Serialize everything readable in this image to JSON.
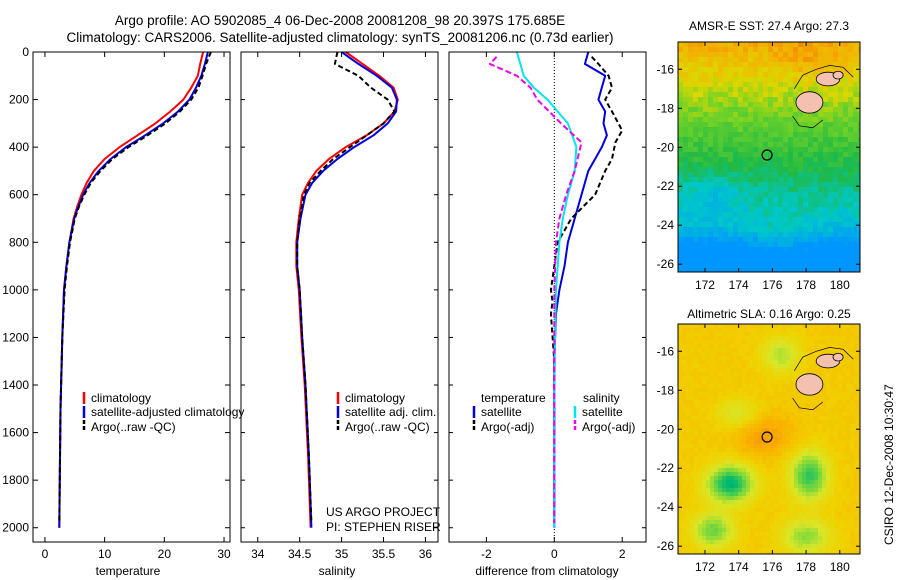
{
  "header": {
    "title_line1": "Argo profile: AO 5902085_4 06-Dec-2008 20081208_98 20.397S 175.685E",
    "title_line2": "Climatology: CARS2006. Satellite-adjusted climatology: synTS_20081206.nc (0.73d earlier)"
  },
  "colors": {
    "climatology": "#ff0000",
    "satellite": "#0000dd",
    "argo": "#000000",
    "cyan": "#00e5ee",
    "magenta": "#ee00ee"
  },
  "side_label": "CSIRO 12-Dec-2008 10:30:47",
  "chart_data": [
    {
      "id": "temperature",
      "type": "line",
      "xlabel": "temperature",
      "ylabel": "",
      "xlim": [
        -2,
        31
      ],
      "ylim": [
        2060,
        0
      ],
      "xticks": [
        0,
        10,
        20,
        30
      ],
      "yticks": [
        0,
        200,
        400,
        600,
        800,
        1000,
        1200,
        1400,
        1600,
        1800,
        2000
      ],
      "series": [
        {
          "name": "climatology",
          "color": "#ff0000",
          "dash": "",
          "x": [
            26.5,
            26.0,
            25.6,
            24.5,
            23.2,
            21.0,
            18.5,
            15.5,
            12.5,
            10.0,
            8.2,
            7.0,
            6.1,
            5.4,
            4.8,
            4.1,
            3.6,
            3.2,
            2.9,
            2.6,
            2.4
          ],
          "y": [
            0,
            50,
            100,
            150,
            200,
            250,
            300,
            350,
            400,
            450,
            500,
            550,
            600,
            650,
            700,
            800,
            900,
            1000,
            1200,
            1500,
            2000
          ]
        },
        {
          "name": "satellite-adjusted climatology",
          "color": "#0000dd",
          "dash": "",
          "x": [
            27.3,
            26.8,
            26.2,
            25.3,
            24.2,
            22.3,
            19.8,
            16.8,
            13.6,
            11.0,
            9.0,
            7.5,
            6.4,
            5.6,
            4.9,
            4.1,
            3.6,
            3.2,
            2.9,
            2.6,
            2.4
          ],
          "y": [
            0,
            50,
            100,
            150,
            200,
            250,
            300,
            350,
            400,
            450,
            500,
            550,
            600,
            650,
            700,
            800,
            900,
            1000,
            1200,
            1500,
            2000
          ]
        },
        {
          "name": "Argo(..raw -QC)",
          "color": "#000000",
          "dash": "5,3",
          "x": [
            27.8,
            27.0,
            26.4,
            25.7,
            24.5,
            22.6,
            20.2,
            17.2,
            14.0,
            11.3,
            9.3,
            7.7,
            6.6,
            5.7,
            5.0,
            4.2,
            3.7,
            3.3,
            2.9,
            2.6,
            2.4
          ],
          "y": [
            0,
            50,
            100,
            150,
            200,
            250,
            300,
            350,
            400,
            450,
            500,
            550,
            600,
            650,
            700,
            800,
            900,
            1000,
            1200,
            1500,
            1980
          ]
        }
      ],
      "legend": [
        "climatology",
        "satellite-adjusted climatology",
        "Argo(..raw -QC)"
      ]
    },
    {
      "id": "salinity",
      "type": "line",
      "xlabel": "salinity",
      "xlim": [
        33.8,
        36.15
      ],
      "ylim": [
        2060,
        0
      ],
      "xticks": [
        34,
        34.5,
        35,
        35.5,
        36
      ],
      "xtick_labels": [
        "34",
        "34.5",
        "35",
        "35.5",
        "36"
      ],
      "series": [
        {
          "name": "climatology",
          "color": "#ff0000",
          "dash": "",
          "x": [
            35.05,
            35.25,
            35.45,
            35.62,
            35.67,
            35.63,
            35.5,
            35.3,
            35.05,
            34.85,
            34.7,
            34.6,
            34.53,
            34.49,
            34.46,
            34.46,
            34.49,
            34.52,
            34.56,
            34.6,
            34.63
          ],
          "y": [
            0,
            50,
            100,
            150,
            200,
            250,
            300,
            350,
            400,
            450,
            500,
            550,
            600,
            700,
            800,
            900,
            1000,
            1200,
            1400,
            1700,
            2000
          ]
        },
        {
          "name": "satellite adj. clim.",
          "color": "#0000dd",
          "dash": "",
          "x": [
            35.0,
            35.2,
            35.42,
            35.6,
            35.66,
            35.65,
            35.55,
            35.38,
            35.15,
            34.95,
            34.78,
            34.65,
            34.57,
            34.51,
            34.47,
            34.47,
            34.5,
            34.53,
            34.57,
            34.61,
            34.64
          ],
          "y": [
            0,
            50,
            100,
            150,
            200,
            250,
            300,
            350,
            400,
            450,
            500,
            550,
            600,
            700,
            800,
            900,
            1000,
            1200,
            1400,
            1700,
            2000
          ]
        },
        {
          "name": "Argo(..raw -QC)",
          "color": "#000000",
          "dash": "5,3",
          "x": [
            34.95,
            34.92,
            35.2,
            35.35,
            35.55,
            35.63,
            35.5,
            35.3,
            35.1,
            34.9,
            34.75,
            34.62,
            34.55,
            34.5,
            34.47,
            34.47,
            34.5,
            34.53,
            34.57,
            34.61,
            34.64
          ],
          "y": [
            0,
            50,
            100,
            150,
            200,
            250,
            300,
            350,
            400,
            450,
            500,
            550,
            600,
            700,
            800,
            900,
            1000,
            1200,
            1400,
            1700,
            1980
          ]
        }
      ],
      "legend": [
        "climatology",
        "satellite adj. clim.",
        "Argo(..raw -QC)"
      ],
      "annotation_line1": "US ARGO PROJECT",
      "annotation_line2": "PI: STEPHEN RISER"
    },
    {
      "id": "difference",
      "type": "line",
      "xlabel": "difference from climatology",
      "xlim": [
        -3.1,
        2.7
      ],
      "ylim": [
        2060,
        0
      ],
      "xticks": [
        -2,
        0,
        2
      ],
      "zero_line": true,
      "series": [
        {
          "name": "temperature satellite",
          "color": "#0000dd",
          "dash": "",
          "x": [
            1.0,
            0.9,
            1.5,
            1.4,
            1.3,
            1.5,
            1.45,
            1.55,
            1.4,
            1.2,
            1.0,
            0.8,
            0.6,
            0.4,
            0.3,
            0.15,
            0.05,
            0.0,
            0.0,
            0.0
          ],
          "y": [
            0,
            50,
            100,
            150,
            200,
            250,
            300,
            350,
            400,
            450,
            500,
            600,
            700,
            800,
            900,
            1000,
            1100,
            1300,
            1600,
            2000
          ]
        },
        {
          "name": "temperature Argo(-adj)",
          "color": "#000000",
          "dash": "5,3",
          "x": [
            1.1,
            1.3,
            1.6,
            1.7,
            1.5,
            1.7,
            2.0,
            1.8,
            1.7,
            1.5,
            1.2,
            0.5,
            0.1,
            0.0,
            -0.1,
            -0.05,
            -0.1,
            0.0,
            0.0
          ],
          "y": [
            20,
            50,
            100,
            150,
            200,
            250,
            330,
            380,
            450,
            500,
            600,
            700,
            800,
            900,
            1000,
            1050,
            1100,
            1300,
            1980
          ]
        },
        {
          "name": "salinity satellite",
          "color": "#00e5ee",
          "dash": "",
          "x": [
            -1.1,
            -1.0,
            -0.9,
            -0.6,
            -0.2,
            0.4,
            0.65,
            0.6,
            0.4,
            0.25,
            0.15,
            0.05,
            0.02,
            0.0,
            0.0
          ],
          "y": [
            0,
            50,
            100,
            150,
            200,
            300,
            400,
            500,
            600,
            700,
            800,
            1000,
            1200,
            1500,
            2000
          ]
        },
        {
          "name": "salinity Argo(-adj)",
          "color": "#ee00ee",
          "dash": "6,3",
          "x": [
            -1.7,
            -1.9,
            -1.1,
            -0.7,
            -0.5,
            0.2,
            0.8,
            0.6,
            0.35,
            0.15,
            0.05,
            0.0,
            0.0
          ],
          "y": [
            20,
            50,
            100,
            150,
            200,
            300,
            380,
            500,
            600,
            700,
            800,
            1000,
            1980
          ]
        }
      ],
      "legend_headers": [
        "temperature",
        "salinity"
      ],
      "legend": [
        "satellite",
        "Argo(-adj)",
        "satellite",
        "Argo(-adj)"
      ]
    },
    {
      "id": "sst_map",
      "type": "heatmap",
      "title": "AMSR-E SST: 27.4 Argo: 27.3",
      "xlim": [
        170.4,
        181.2
      ],
      "ylim": [
        -26.4,
        -14.6
      ],
      "xticks": [
        172,
        174,
        176,
        178,
        180
      ],
      "yticks": [
        -16,
        -18,
        -20,
        -22,
        -24,
        -26
      ],
      "profile_location": [
        175.685,
        -20.397
      ]
    },
    {
      "id": "sla_map",
      "type": "heatmap",
      "title": "Altimetric SLA: 0.16 Argo: 0.25",
      "xlim": [
        170.4,
        181.2
      ],
      "ylim": [
        -26.4,
        -14.6
      ],
      "xticks": [
        172,
        174,
        176,
        178,
        180
      ],
      "yticks": [
        -16,
        -18,
        -20,
        -22,
        -24,
        -26
      ],
      "profile_location": [
        175.685,
        -20.397
      ]
    }
  ]
}
